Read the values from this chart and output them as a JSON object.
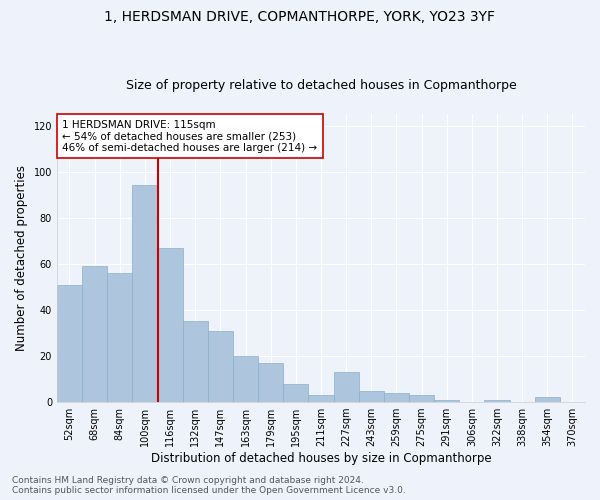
{
  "title": "1, HERDSMAN DRIVE, COPMANTHORPE, YORK, YO23 3YF",
  "subtitle": "Size of property relative to detached houses in Copmanthorpe",
  "xlabel": "Distribution of detached houses by size in Copmanthorpe",
  "ylabel": "Number of detached properties",
  "categories": [
    "52sqm",
    "68sqm",
    "84sqm",
    "100sqm",
    "116sqm",
    "132sqm",
    "147sqm",
    "163sqm",
    "179sqm",
    "195sqm",
    "211sqm",
    "227sqm",
    "243sqm",
    "259sqm",
    "275sqm",
    "291sqm",
    "306sqm",
    "322sqm",
    "338sqm",
    "354sqm",
    "370sqm"
  ],
  "values": [
    51,
    59,
    56,
    94,
    67,
    35,
    31,
    20,
    17,
    8,
    3,
    13,
    5,
    4,
    3,
    1,
    0,
    1,
    0,
    2,
    0
  ],
  "bar_color": "#aec6dd",
  "bar_edge_color": "#8ab0cc",
  "bar_width": 1.0,
  "vline_x_index": 3.5,
  "vline_color": "#cc0000",
  "annotation_text": "1 HERDSMAN DRIVE: 115sqm\n← 54% of detached houses are smaller (253)\n46% of semi-detached houses are larger (214) →",
  "annotation_box_color": "#ffffff",
  "annotation_box_edge": "#cc0000",
  "ylim": [
    0,
    125
  ],
  "yticks": [
    0,
    20,
    40,
    60,
    80,
    100,
    120
  ],
  "background_color": "#eef2fb",
  "grid_color": "#ffffff",
  "footer_line1": "Contains HM Land Registry data © Crown copyright and database right 2024.",
  "footer_line2": "Contains public sector information licensed under the Open Government Licence v3.0.",
  "title_fontsize": 10,
  "subtitle_fontsize": 9,
  "xlabel_fontsize": 8.5,
  "ylabel_fontsize": 8.5,
  "tick_fontsize": 7,
  "annot_fontsize": 7.5,
  "footer_fontsize": 6.5
}
